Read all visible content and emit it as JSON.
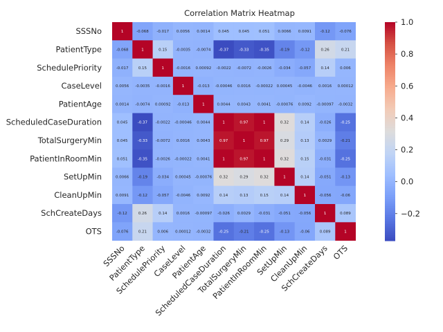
{
  "chart_data": {
    "type": "heatmap",
    "title": "Correlation Matrix Heatmap",
    "variables": [
      "SSSNo",
      "PatientType",
      "SchedulePriority",
      "CaseLevel",
      "PatientAge",
      "ScheduledCaseDuration",
      "TotalSurgeryMin",
      "PatientInRoomMin",
      "SetUpMin",
      "CleanUpMin",
      "SchCreateDays",
      "OTS"
    ],
    "matrix": [
      [
        1,
        -0.068,
        -0.017,
        0.0056,
        0.0014,
        0.045,
        0.045,
        0.051,
        0.0066,
        0.0091,
        -0.12,
        -0.076
      ],
      [
        -0.068,
        1,
        0.15,
        -0.0035,
        -0.0074,
        -0.37,
        -0.33,
        -0.35,
        -0.19,
        -0.12,
        0.26,
        0.21
      ],
      [
        -0.017,
        0.15,
        1,
        -0.0016,
        0.00092,
        -0.0022,
        -0.0072,
        -0.0026,
        -0.034,
        -0.057,
        0.14,
        0.006
      ],
      [
        0.0056,
        -0.0035,
        -0.0016,
        1,
        -0.013,
        -0.00046,
        0.0016,
        -0.00022,
        0.00045,
        -0.0046,
        0.0016,
        0.00012
      ],
      [
        0.0014,
        -0.0074,
        0.00092,
        -0.013,
        1,
        0.0044,
        0.0043,
        0.0041,
        -0.00076,
        0.0092,
        -0.00097,
        -0.0032
      ],
      [
        0.045,
        -0.37,
        -0.0022,
        -0.00046,
        0.0044,
        1,
        0.97,
        1,
        0.32,
        0.14,
        -0.026,
        -0.25
      ],
      [
        0.045,
        -0.33,
        -0.0072,
        0.0016,
        0.0043,
        0.97,
        1,
        0.97,
        0.29,
        0.13,
        0.0029,
        -0.21
      ],
      [
        0.051,
        -0.35,
        -0.0026,
        -0.00022,
        0.0041,
        1,
        0.97,
        1,
        0.32,
        0.15,
        -0.031,
        -0.25
      ],
      [
        0.0066,
        -0.19,
        -0.034,
        0.00045,
        -0.00076,
        0.32,
        0.29,
        0.32,
        1,
        0.14,
        -0.051,
        -0.13
      ],
      [
        0.0091,
        -0.12,
        -0.057,
        -0.0046,
        0.0092,
        0.14,
        0.13,
        0.15,
        0.14,
        1,
        -0.056,
        -0.06
      ],
      [
        -0.12,
        0.26,
        0.14,
        0.0016,
        -0.00097,
        -0.026,
        0.0029,
        -0.031,
        -0.051,
        -0.056,
        1,
        0.089
      ],
      [
        -0.076,
        0.21,
        0.006,
        0.00012,
        -0.0032,
        -0.25,
        -0.21,
        -0.25,
        -0.13,
        -0.06,
        0.089,
        1
      ]
    ],
    "cell_labels": [
      [
        "1",
        "-0.068",
        "-0.017",
        "0.0056",
        "0.0014",
        "0.045",
        "0.045",
        "0.051",
        "0.0066",
        "0.0091",
        "-0.12",
        "-0.076"
      ],
      [
        "-0.068",
        "1",
        "0.15",
        "-0.0035",
        "-0.0074",
        "-0.37",
        "-0.33",
        "-0.35",
        "-0.19",
        "-0.12",
        "0.26",
        "0.21"
      ],
      [
        "-0.017",
        "0.15",
        "1",
        "-0.0016",
        "0.00092",
        "-0.0022",
        "-0.0072",
        "-0.0026",
        "-0.034",
        "-0.057",
        "0.14",
        "0.006"
      ],
      [
        "0.0056",
        "-0.0035",
        "-0.0016",
        "1",
        "-0.013",
        "-0.00046",
        "0.0016",
        "-0.00022",
        "0.00045",
        "-0.0046",
        "0.0016",
        "0.00012"
      ],
      [
        "0.0014",
        "-0.0074",
        "0.00092",
        "-0.013",
        "1",
        "0.0044",
        "0.0043",
        "0.0041",
        "-0.00076",
        "0.0092",
        "-0.00097",
        "-0.0032"
      ],
      [
        "0.045",
        "-0.37",
        "-0.0022",
        "-0.00046",
        "0.0044",
        "1",
        "0.97",
        "1",
        "0.32",
        "0.14",
        "-0.026",
        "-0.25"
      ],
      [
        "0.045",
        "-0.33",
        "-0.0072",
        "0.0016",
        "0.0043",
        "0.97",
        "1",
        "0.97",
        "0.29",
        "0.13",
        "0.0029",
        "-0.21"
      ],
      [
        "0.051",
        "-0.35",
        "-0.0026",
        "-0.00022",
        "0.0041",
        "1",
        "0.97",
        "1",
        "0.32",
        "0.15",
        "-0.031",
        "-0.25"
      ],
      [
        "0.0066",
        "-0.19",
        "-0.034",
        "0.00045",
        "-0.00076",
        "0.32",
        "0.29",
        "0.32",
        "1",
        "0.14",
        "-0.051",
        "-0.13"
      ],
      [
        "0.0091",
        "-0.12",
        "-0.057",
        "-0.0046",
        "0.0092",
        "0.14",
        "0.13",
        "0.15",
        "0.14",
        "1",
        "-0.056",
        "-0.06"
      ],
      [
        "-0.12",
        "0.26",
        "0.14",
        "0.0016",
        "-0.00097",
        "-0.026",
        "0.0029",
        "-0.031",
        "-0.051",
        "-0.056",
        "1",
        "0.089"
      ],
      [
        "-0.076",
        "0.21",
        "0.006",
        "0.00012",
        "-0.0032",
        "-0.25",
        "-0.21",
        "-0.25",
        "-0.13",
        "-0.06",
        "0.089",
        "1"
      ]
    ],
    "colormap": "coolwarm",
    "colormap_stops": [
      "#3b4cc0",
      "#5977e3",
      "#7b9ff9",
      "#9ebeff",
      "#c0d4f5",
      "#dddcdc",
      "#f2cbb7",
      "#f7ac8e",
      "#ee8468",
      "#d65244",
      "#b40426"
    ],
    "vmin": -0.37,
    "vmax": 1,
    "colorbar": {
      "ticks": [
        1.0,
        0.8,
        0.6,
        0.4,
        0.2,
        0.0,
        -0.2
      ],
      "tick_labels": [
        "1.0",
        "0.8",
        "0.6",
        "0.4",
        "0.2",
        "0.0",
        "−0.2"
      ]
    },
    "grid": false,
    "legend": "colorbar-right"
  }
}
